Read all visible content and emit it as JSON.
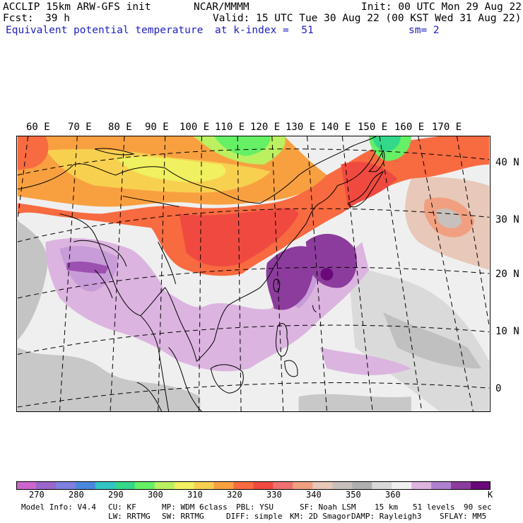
{
  "header": {
    "model": "ACCLIP 15km ARW-GFS init",
    "center": "NCAR/MMMM",
    "init": "Init: 00 UTC Mon 29 Aug 22",
    "fcst_label": "Fcst:",
    "fcst_value": "39 h",
    "valid": "Valid: 15 UTC Tue 30 Aug 22 (00 KST Wed 31 Aug 22)",
    "field": "Equivalent potential temperature",
    "level": "at k-index =  51",
    "smooth": "sm= 2"
  },
  "map": {
    "lon_labels": [
      "60 E",
      "70 E",
      "80 E",
      "90 E",
      "100 E",
      "110 E",
      "120 E",
      "130 E",
      "140 E",
      "150 E",
      "160 E",
      "170 E"
    ],
    "lat_labels": [
      "40 N",
      "30 N",
      "20 N",
      "10 N",
      "0"
    ],
    "projection": "Lambert conformal (East Asia / Western Pacific)"
  },
  "colorbar": {
    "colors": [
      "#cc66cc",
      "#9966cc",
      "#8080e0",
      "#4a88e0",
      "#33c4c4",
      "#33d88a",
      "#66f066",
      "#bbf060",
      "#f0f060",
      "#f8d050",
      "#f8a040",
      "#f86a40",
      "#f04a40",
      "#f07070",
      "#f0a080",
      "#e8c8b8",
      "#c8c0bc",
      "#b0b0b0",
      "#d8d8d8",
      "#f0f0f0",
      "#dcb4e0",
      "#b080d0",
      "#8c3c9c",
      "#6a0a7a"
    ],
    "labels": [
      "270",
      "280",
      "290",
      "300",
      "310",
      "320",
      "330",
      "340",
      "350",
      "360"
    ],
    "unit": "K"
  },
  "footer": {
    "line1": [
      "Model Info: V4.4",
      "CU: KF",
      "MP: WDM 6class",
      "PBL: YSU",
      "SF: Noah LSM",
      "15 km",
      "51 levels",
      "90 sec"
    ],
    "line2": [
      "LW: RRTMG",
      "SW: RRTMG",
      "DIFF: simple",
      "KM: 2D Smagor",
      "DAMP: Rayleigh3",
      "SFLAY: MM5"
    ]
  }
}
